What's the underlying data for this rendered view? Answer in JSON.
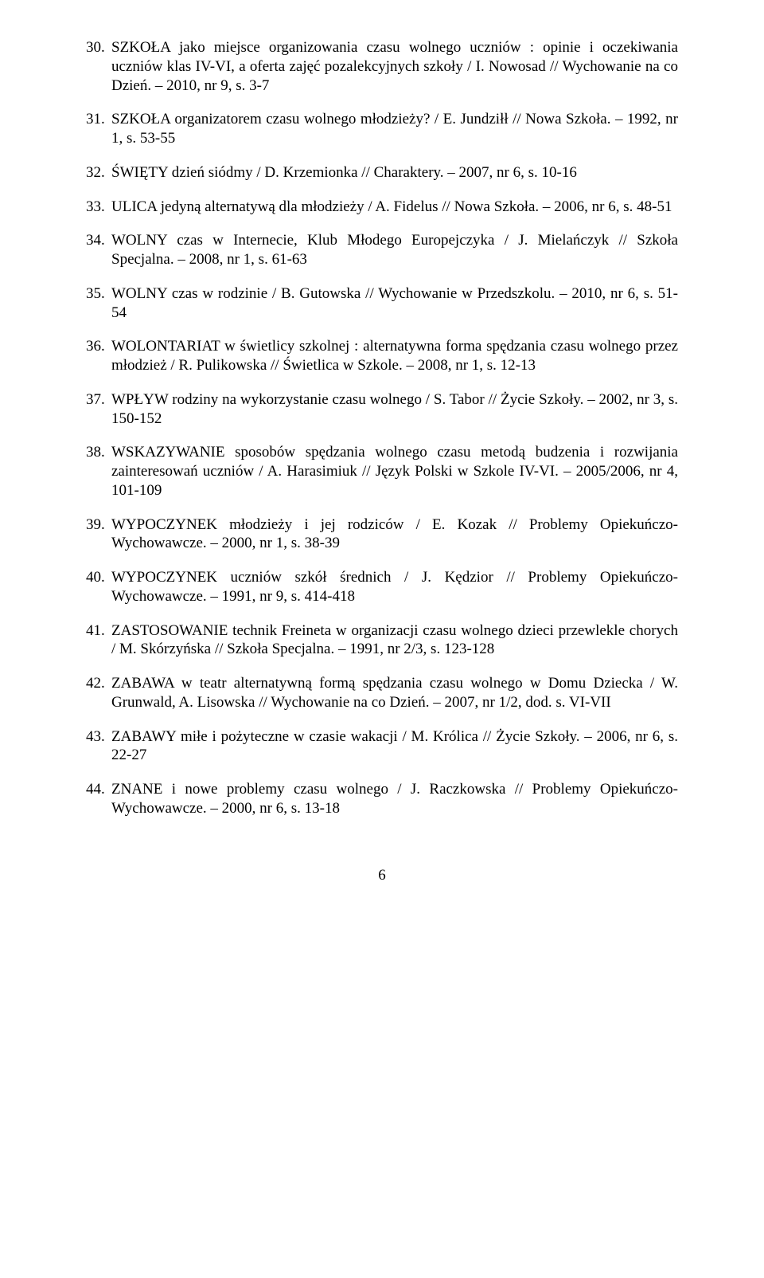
{
  "entries": [
    {
      "n": "30.",
      "text": "SZKOŁA jako miejsce organizowania czasu wolnego uczniów : opinie i oczekiwania uczniów klas IV-VI, a oferta zajęć pozalekcyjnych szkoły / I. Nowosad // Wychowanie na co Dzień. – 2010, nr 9, s. 3-7"
    },
    {
      "n": "31.",
      "text": "SZKOŁA organizatorem czasu wolnego młodzieży? / E. Jundziłł // Nowa Szkoła. – 1992, nr 1, s. 53-55"
    },
    {
      "n": "32.",
      "text": "ŚWIĘTY dzień siódmy / D. Krzemionka // Charaktery. – 2007, nr 6, s. 10-16"
    },
    {
      "n": "33.",
      "text": "ULICA jedyną alternatywą dla młodzieży / A. Fidelus // Nowa Szkoła. – 2006, nr 6, s. 48-51"
    },
    {
      "n": "34.",
      "text": "WOLNY czas w Internecie, Klub Młodego Europejczyka / J. Mielańczyk // Szkoła Specjalna. – 2008, nr 1, s. 61-63"
    },
    {
      "n": "35.",
      "text": "WOLNY czas w rodzinie / B. Gutowska // Wychowanie w Przedszkolu. – 2010, nr 6, s. 51-54"
    },
    {
      "n": "36.",
      "text": "WOLONTARIAT w świetlicy szkolnej : alternatywna forma spędzania czasu wolnego przez młodzież / R. Pulikowska // Świetlica w Szkole. – 2008, nr 1, s. 12-13"
    },
    {
      "n": "37.",
      "text": "WPŁYW rodziny na wykorzystanie czasu wolnego / S. Tabor // Życie Szkoły. – 2002, nr 3, s. 150-152"
    },
    {
      "n": "38.",
      "text": "WSKAZYWANIE sposobów spędzania wolnego czasu metodą budzenia i rozwijania zainteresowań uczniów / A. Harasimiuk // Język Polski w Szkole IV-VI. – 2005/2006, nr 4, 101-109"
    },
    {
      "n": "39.",
      "text": "WYPOCZYNEK młodzieży i jej rodziców / E. Kozak // Problemy Opiekuńczo-Wychowawcze. – 2000, nr 1, s. 38-39"
    },
    {
      "n": "40.",
      "text": "WYPOCZYNEK uczniów szkół średnich / J. Kędzior // Problemy Opiekuńczo-Wychowawcze. – 1991, nr 9, s. 414-418"
    },
    {
      "n": "41.",
      "text": "ZASTOSOWANIE technik Freineta w organizacji czasu wolnego dzieci przewlekle chorych / M. Skórzyńska // Szkoła Specjalna. – 1991, nr 2/3, s. 123-128"
    },
    {
      "n": "42.",
      "text": "ZABAWA w teatr alternatywną formą spędzania czasu wolnego w Domu Dziecka / W. Grunwald, A. Lisowska // Wychowanie na co Dzień. – 2007, nr 1/2, dod. s. VI-VII"
    },
    {
      "n": "43.",
      "text": "ZABAWY miłe i pożyteczne w czasie wakacji / M. Królica // Życie Szkoły. – 2006, nr 6, s. 22-27"
    },
    {
      "n": "44.",
      "text": "ZNANE i nowe problemy czasu wolnego / J. Raczkowska // Problemy Opiekuńczo-Wychowawcze. – 2000, nr 6, s. 13-18"
    }
  ],
  "page_number": "6"
}
